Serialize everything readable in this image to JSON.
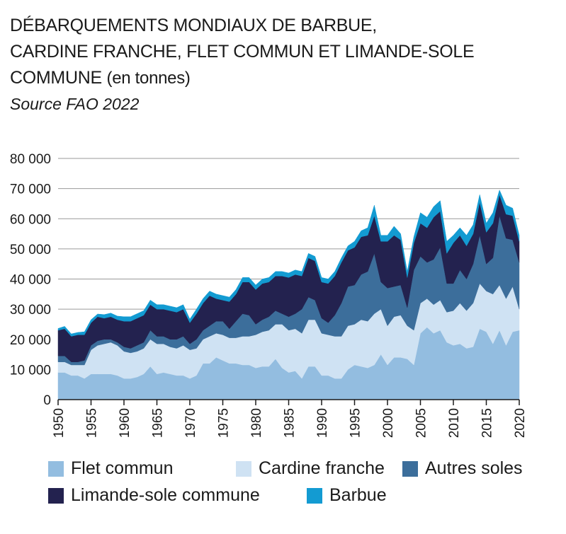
{
  "title_line1": "DÉBARQUEMENTS MONDIAUX DE BARBUE,",
  "title_line2": "CARDINE FRANCHE, FLET COMMUN ET LIMANDE-SOLE",
  "title_line3": "COMMUNE",
  "title_unit": "(en tonnes)",
  "source": "Source FAO 2022",
  "chart_data": {
    "type": "area",
    "stacked": true,
    "grid": "horizontal",
    "legend_position": "bottom",
    "ylim": [
      0,
      80000
    ],
    "yticks": [
      0,
      10000,
      20000,
      30000,
      40000,
      50000,
      60000,
      70000,
      80000
    ],
    "ytick_labels": [
      "0",
      "10 000",
      "20 000",
      "30 000",
      "40 000",
      "50 000",
      "60 000",
      "70 000",
      "80 000"
    ],
    "xlim": [
      1950,
      2020
    ],
    "xticks": [
      1950,
      1955,
      1960,
      1965,
      1970,
      1975,
      1980,
      1985,
      1990,
      1995,
      2000,
      2005,
      2010,
      2015,
      2020
    ],
    "xtick_labels": [
      "1950",
      "1955",
      "1960",
      "1965",
      "1970",
      "1975",
      "1980",
      "1985",
      "1990",
      "1995",
      "2000",
      "2005",
      "2010",
      "2015",
      "2020"
    ],
    "x": [
      1950,
      1951,
      1952,
      1953,
      1954,
      1955,
      1956,
      1957,
      1958,
      1959,
      1960,
      1961,
      1962,
      1963,
      1964,
      1965,
      1966,
      1967,
      1968,
      1969,
      1970,
      1971,
      1972,
      1973,
      1974,
      1975,
      1976,
      1977,
      1978,
      1979,
      1980,
      1981,
      1982,
      1983,
      1984,
      1985,
      1986,
      1987,
      1988,
      1989,
      1990,
      1991,
      1992,
      1993,
      1994,
      1995,
      1996,
      1997,
      1998,
      1999,
      2000,
      2001,
      2002,
      2003,
      2004,
      2005,
      2006,
      2007,
      2008,
      2009,
      2010,
      2011,
      2012,
      2013,
      2014,
      2015,
      2016,
      2017,
      2018,
      2019,
      2020
    ],
    "series": [
      {
        "name": "Flet commun",
        "color": "#93bde0",
        "values": [
          9000,
          9000,
          8000,
          8000,
          7000,
          8500,
          8500,
          8500,
          8500,
          8000,
          7000,
          7000,
          7500,
          8500,
          11000,
          8500,
          9000,
          8500,
          8000,
          8000,
          7000,
          8000,
          12000,
          12000,
          14000,
          13000,
          12000,
          12000,
          11500,
          11500,
          10500,
          11000,
          11000,
          13500,
          10500,
          9000,
          9500,
          7000,
          11000,
          11000,
          8000,
          8000,
          7000,
          7000,
          10000,
          11500,
          11000,
          10500,
          11500,
          15000,
          11500,
          14000,
          14000,
          13500,
          11500,
          22000,
          24000,
          22000,
          23000,
          19000,
          18000,
          18500,
          17000,
          17500,
          23500,
          22500,
          18500,
          23000,
          18000,
          22500,
          23000
        ]
      },
      {
        "name": "Cardine franche",
        "color": "#cfe2f3",
        "values": [
          3500,
          3500,
          3500,
          3500,
          4500,
          8000,
          9500,
          10000,
          10500,
          10000,
          9000,
          8500,
          8500,
          8500,
          9000,
          10000,
          9500,
          9000,
          9000,
          10000,
          9500,
          9000,
          8000,
          9000,
          8000,
          8500,
          8500,
          8500,
          9500,
          9500,
          11000,
          11500,
          12000,
          11500,
          14500,
          14000,
          14000,
          15000,
          15500,
          15500,
          14000,
          13500,
          14000,
          14000,
          14500,
          13500,
          15500,
          15500,
          17000,
          15000,
          13000,
          13500,
          14000,
          11000,
          11500,
          10000,
          9500,
          9500,
          10000,
          10000,
          11500,
          13500,
          12500,
          14500,
          15000,
          13500,
          16500,
          15000,
          15500,
          15000,
          7000
        ]
      },
      {
        "name": "Autres soles",
        "color": "#3c6e9b",
        "values": [
          2000,
          2000,
          1000,
          1000,
          1500,
          1500,
          1500,
          1500,
          1000,
          1000,
          1500,
          1500,
          2000,
          2000,
          3000,
          2500,
          2500,
          2500,
          3000,
          3000,
          2000,
          3000,
          3000,
          3500,
          4000,
          4500,
          3000,
          5500,
          7500,
          7000,
          3500,
          4000,
          4500,
          4500,
          3500,
          4500,
          5000,
          8000,
          7500,
          6500,
          5000,
          4000,
          7000,
          11000,
          13000,
          13000,
          15000,
          16500,
          20000,
          9000,
          12500,
          10000,
          10000,
          6000,
          20000,
          15500,
          12000,
          15000,
          17500,
          9500,
          9000,
          11000,
          10500,
          13000,
          16000,
          9000,
          12000,
          23000,
          20000,
          15500,
          15500
        ]
      },
      {
        "name": "Limande-sole commune",
        "color": "#23224f",
        "values": [
          8500,
          9000,
          8500,
          9000,
          8500,
          7500,
          8000,
          7000,
          7500,
          7500,
          8500,
          9000,
          9000,
          9000,
          8500,
          9000,
          9000,
          9500,
          9000,
          9000,
          7000,
          8500,
          9000,
          10000,
          7500,
          7000,
          9000,
          9000,
          10500,
          11000,
          11500,
          12000,
          11500,
          11500,
          12500,
          13000,
          13000,
          11000,
          13000,
          13000,
          12000,
          13000,
          13000,
          13500,
          12000,
          12500,
          12500,
          12000,
          12500,
          13500,
          15500,
          17000,
          15000,
          10000,
          9000,
          11000,
          11500,
          14000,
          12000,
          10000,
          13500,
          11500,
          11000,
          10000,
          11000,
          10500,
          11500,
          7000,
          8000,
          8000,
          7000
        ]
      },
      {
        "name": "Barbue",
        "color": "#139bd2",
        "values": [
          600,
          800,
          800,
          800,
          1000,
          1000,
          900,
          1200,
          1200,
          1200,
          1500,
          1500,
          1500,
          1500,
          1500,
          1500,
          1500,
          1500,
          1500,
          1500,
          1200,
          1500,
          1500,
          1500,
          1500,
          1500,
          1500,
          1500,
          1500,
          1500,
          1500,
          1500,
          1500,
          1500,
          1500,
          1500,
          1500,
          1500,
          1500,
          1500,
          1500,
          1500,
          1500,
          1500,
          1500,
          2000,
          2000,
          2500,
          3500,
          2000,
          2000,
          3000,
          2000,
          2000,
          2000,
          3500,
          3500,
          3500,
          3500,
          4000,
          2500,
          2500,
          3500,
          3000,
          2500,
          3000,
          3500,
          1500,
          3000,
          2500,
          2000
        ]
      }
    ]
  }
}
